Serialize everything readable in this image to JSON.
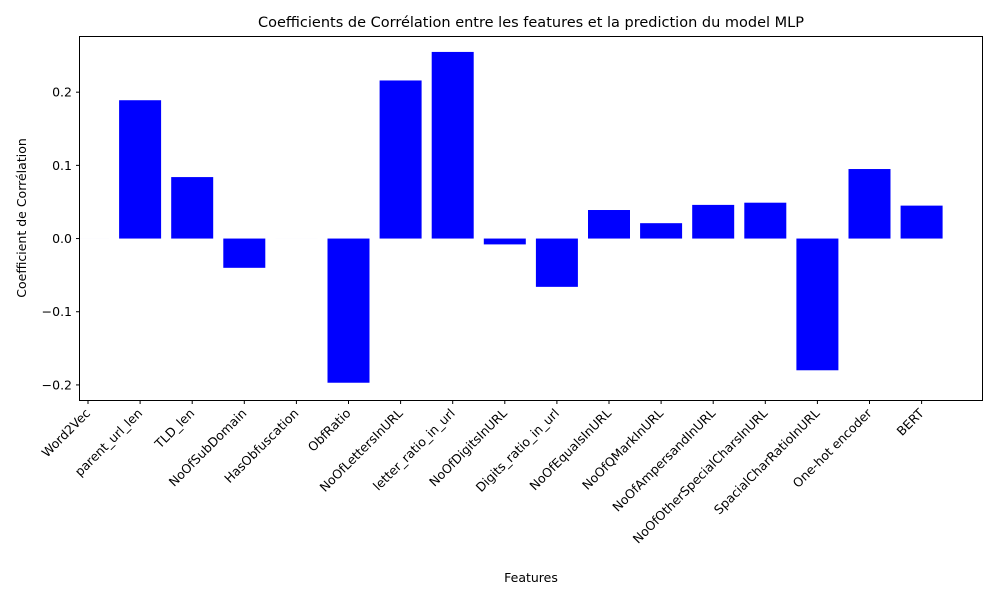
{
  "chart_data": {
    "type": "bar",
    "title": "Coefficients de Corrélation entre les features et la prediction du model MLP",
    "xlabel": "Features",
    "ylabel": "Coefficient de Corrélation",
    "categories": [
      "Word2Vec",
      "parent_url_len",
      "TLD_len",
      "NoOfSubDomain",
      "HasObfuscation",
      "ObfRatio",
      "NoOfLettersInURL",
      "letter_ratio_in_url",
      "NoOfDigitsInURL",
      "Digits_ratio_in_url",
      "NoOfEqualsInURL",
      "NoOfQMarkInURL",
      "NoOfAmpersandInURL",
      "NoOfOtherSpecialCharsInURL",
      "SpacialCharRatioInURL",
      "One-hot encoder",
      "BERT"
    ],
    "values": [
      0.0,
      0.189,
      0.084,
      -0.04,
      0.0,
      -0.197,
      0.216,
      0.255,
      -0.008,
      -0.066,
      0.039,
      0.021,
      0.046,
      0.049,
      -0.18,
      0.095,
      0.045
    ],
    "yticks": [
      -0.2,
      -0.1,
      0.0,
      0.1,
      0.2
    ],
    "ytick_labels": [
      "−0.2",
      "−0.1",
      "0.0",
      "0.1",
      "0.2"
    ],
    "ylim": [
      -0.2206,
      0.2754
    ],
    "bar_color": "#0000ff",
    "grid": false,
    "legend": "none"
  }
}
